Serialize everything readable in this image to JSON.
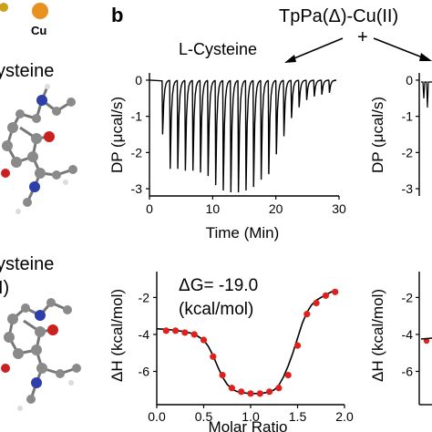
{
  "panel_label": "b",
  "legend_atom": "Cu",
  "colors": {
    "cu_atom": "#e8911f",
    "carbon": "#8a8a8a",
    "oxygen": "#cc1f1f",
    "nitrogen": "#2c3ea8",
    "fit_points": "#e0201b"
  },
  "left_labels": {
    "top": "ysteine",
    "bottom_1": "ysteine",
    "bottom_2": "I)"
  },
  "header": {
    "title": "TpPa(Δ)-Cu(II)",
    "plus": "+",
    "arrow_label": "L-Cysteine"
  },
  "annotation": {
    "line1": "ΔG= -19.0",
    "line2": "(kcal/mol)"
  },
  "chart_data": [
    {
      "type": "line",
      "title": "",
      "xlabel": "Time (Min)",
      "ylabel": "DP (μcal/s)",
      "xlim": [
        0,
        30
      ],
      "ylim": [
        -3.2,
        0.2
      ],
      "x_ticks": [
        0,
        10,
        20,
        30
      ],
      "y_ticks": [
        0,
        -1,
        -2,
        -3
      ],
      "injection_times": [
        2.0,
        3.2,
        4.4,
        5.6,
        6.8,
        8.0,
        9.2,
        10.4,
        11.6,
        12.8,
        14.0,
        15.2,
        16.4,
        17.6,
        18.8,
        20.0,
        21.2,
        22.4,
        23.6,
        24.8,
        26.0,
        27.2,
        28.4
      ],
      "peak_values": [
        -1.5,
        -2.45,
        -2.45,
        -2.5,
        -2.5,
        -2.55,
        -2.65,
        -2.9,
        -3.05,
        -3.1,
        -3.1,
        -3.05,
        -2.95,
        -2.75,
        -2.6,
        -2.05,
        -1.55,
        -1.05,
        -0.75,
        -0.55,
        -0.45,
        -0.4,
        -0.35
      ],
      "grid": false
    },
    {
      "type": "scatter",
      "title": "",
      "xlabel": "Molar Ratio",
      "ylabel": "ΔH (kcal/mol)",
      "xlim": [
        0,
        2
      ],
      "ylim": [
        -7.8,
        -0.6
      ],
      "x_ticks": [
        0.0,
        0.5,
        1.0,
        1.5,
        2.0
      ],
      "y_ticks": [
        -2,
        -4,
        -6
      ],
      "x_tick_labels": [
        "0.0",
        "0.5",
        "1.0",
        "1.5",
        "2.0"
      ],
      "points": {
        "x": [
          0.1,
          0.2,
          0.3,
          0.4,
          0.5,
          0.6,
          0.7,
          0.8,
          0.9,
          1.0,
          1.1,
          1.2,
          1.3,
          1.4,
          1.5,
          1.6,
          1.7,
          1.8,
          1.9
        ],
        "y": [
          -3.8,
          -3.8,
          -3.9,
          -4.0,
          -4.3,
          -5.2,
          -6.2,
          -6.9,
          -7.1,
          -7.2,
          -7.2,
          -7.1,
          -6.9,
          -6.2,
          -4.6,
          -2.9,
          -2.3,
          -1.9,
          -1.7
        ]
      },
      "fit": {
        "x": [
          0.0,
          0.1,
          0.2,
          0.3,
          0.4,
          0.5,
          0.55,
          0.6,
          0.65,
          0.7,
          0.75,
          0.8,
          0.85,
          0.9,
          1.0,
          1.1,
          1.2,
          1.25,
          1.3,
          1.35,
          1.4,
          1.45,
          1.5,
          1.55,
          1.6,
          1.65,
          1.7,
          1.8,
          1.9
        ],
        "y": [
          -3.7,
          -3.72,
          -3.78,
          -3.85,
          -3.98,
          -4.3,
          -4.65,
          -5.15,
          -5.75,
          -6.3,
          -6.7,
          -6.95,
          -7.08,
          -7.15,
          -7.2,
          -7.2,
          -7.12,
          -7.0,
          -6.75,
          -6.3,
          -5.7,
          -5.0,
          -4.2,
          -3.4,
          -2.8,
          -2.4,
          -2.15,
          -1.85,
          -1.6
        ]
      },
      "grid": false
    }
  ]
}
